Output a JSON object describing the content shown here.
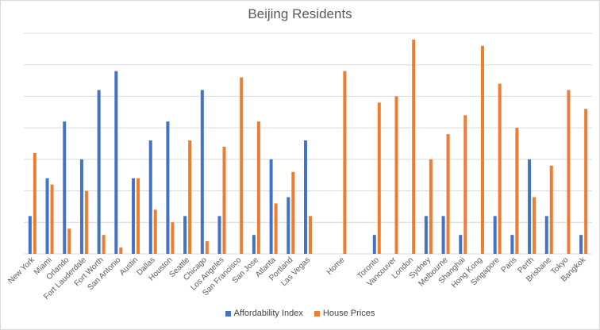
{
  "chart_data": {
    "type": "bar",
    "title": "Beijing Residents",
    "xlabel": "",
    "ylabel": "",
    "ylim": [
      0,
      35
    ],
    "grid": true,
    "legend_position": "bottom",
    "categories": [
      "New York",
      "Miami",
      "Orlando",
      "Fort Lauderdale",
      "Fort Worth",
      "San Antonio",
      "Austin",
      "Dallas",
      "Houston",
      "Seattle",
      "Chicago",
      "Los Angeles",
      "San Francisco",
      "San Jose",
      "Atlanta",
      "Portland",
      "Las Vegas",
      "",
      "Home",
      "",
      "Toronto",
      "Vancouver",
      "London",
      "Sydney",
      "Melbourne",
      "Shanghai",
      "Hong Kong",
      "Singapore",
      "Paris",
      "Perth",
      "Brisbane",
      "Tokyo",
      "Bangkok"
    ],
    "series": [
      {
        "name": "Affordability Index",
        "color": "#4472c4",
        "values": [
          6,
          12,
          21,
          15,
          26,
          29,
          12,
          18,
          21,
          6,
          26,
          6,
          0,
          3,
          15,
          9,
          18,
          0,
          0,
          0,
          3,
          0,
          0,
          6,
          6,
          3,
          0,
          6,
          3,
          15,
          6,
          0,
          3
        ]
      },
      {
        "name": "House Prices",
        "color": "#ed7d31",
        "values": [
          16,
          11,
          4,
          10,
          3,
          1,
          12,
          7,
          5,
          18,
          2,
          17,
          28,
          21,
          8,
          13,
          6,
          0,
          29,
          0,
          24,
          25,
          34,
          15,
          19,
          22,
          33,
          27,
          20,
          9,
          14,
          26,
          23
        ]
      }
    ]
  }
}
